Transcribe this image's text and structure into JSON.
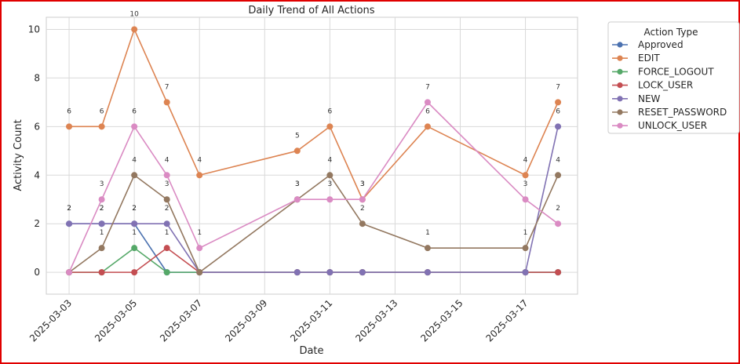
{
  "chart_data": {
    "type": "line",
    "title": "Daily Trend of All Actions",
    "xlabel": "Date",
    "ylabel": "Activity Count",
    "ylim": [
      -0.9,
      10.5
    ],
    "xlim": [
      "2025-03-02.3",
      "2025-03-18.6"
    ],
    "yticks": [
      0,
      2,
      4,
      6,
      8,
      10
    ],
    "xticks": [
      "2025-03-03",
      "2025-03-05",
      "2025-03-07",
      "2025-03-09",
      "2025-03-11",
      "2025-03-13",
      "2025-03-15",
      "2025-03-17"
    ],
    "x": [
      "2025-03-03",
      "2025-03-04",
      "2025-03-05",
      "2025-03-06",
      "2025-03-07",
      "2025-03-10",
      "2025-03-11",
      "2025-03-12",
      "2025-03-14",
      "2025-03-17",
      "2025-03-18"
    ],
    "grid": true,
    "legend": {
      "title": "Action Type",
      "placement": "outside-right-top"
    },
    "series": [
      {
        "name": "Approved",
        "color": "#4c72b0",
        "values": [
          2,
          2,
          2,
          0,
          0,
          0,
          0,
          0,
          0,
          0,
          0
        ]
      },
      {
        "name": "EDIT",
        "color": "#dd8452",
        "values": [
          6,
          6,
          10,
          7,
          4,
          5,
          6,
          3,
          6,
          4,
          7
        ]
      },
      {
        "name": "FORCE_LOGOUT",
        "color": "#55a868",
        "values": [
          0,
          0,
          1,
          0,
          0,
          0,
          0,
          0,
          0,
          0,
          0
        ]
      },
      {
        "name": "LOCK_USER",
        "color": "#c44e52",
        "values": [
          0,
          0,
          0,
          1,
          0,
          0,
          0,
          0,
          0,
          0,
          0
        ]
      },
      {
        "name": "NEW",
        "color": "#8172b3",
        "values": [
          2,
          2,
          2,
          2,
          0,
          0,
          0,
          0,
          0,
          0,
          6
        ]
      },
      {
        "name": "RESET_PASSWORD",
        "color": "#937860",
        "values": [
          0,
          1,
          4,
          3,
          0,
          3,
          4,
          2,
          1,
          1,
          4
        ]
      },
      {
        "name": "UNLOCK_USER",
        "color": "#da8bc3",
        "values": [
          0,
          3,
          6,
          4,
          1,
          3,
          3,
          3,
          7,
          3,
          2
        ]
      }
    ]
  }
}
